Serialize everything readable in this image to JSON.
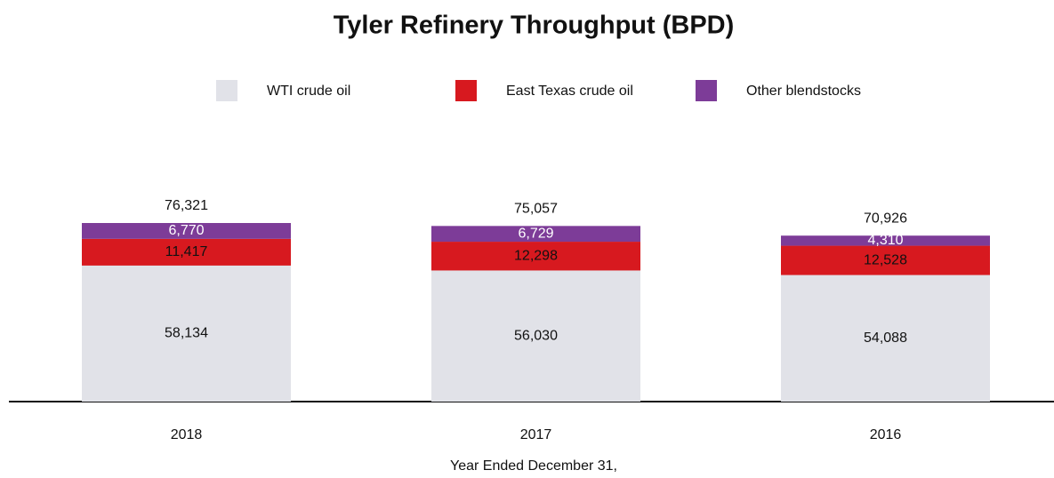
{
  "chart_data": {
    "type": "stacked_bar",
    "title": "Tyler Refinery Throughput (BPD)",
    "xlabel": "Year Ended December 31,",
    "categories": [
      "2018",
      "2017",
      "2016"
    ],
    "series": [
      {
        "name": "WTI crude oil",
        "color": "#e1e2e8",
        "values": [
          58134,
          56030,
          54088
        ],
        "value_labels": [
          "58,134",
          "56,030",
          "54,088"
        ]
      },
      {
        "name": "East Texas crude oil",
        "color": "#d7191f",
        "values": [
          11417,
          12298,
          12528
        ],
        "value_labels": [
          "11,417",
          "12,298",
          "12,528"
        ]
      },
      {
        "name": "Other blendstocks",
        "color": "#7d3c98",
        "values": [
          6770,
          6729,
          4310
        ],
        "value_labels": [
          "6,770",
          "6,729",
          "4,310"
        ]
      }
    ],
    "totals": [
      76321,
      75057,
      70926
    ],
    "total_labels": [
      "76,321",
      "75,057",
      "70,926"
    ],
    "legend": "top"
  }
}
